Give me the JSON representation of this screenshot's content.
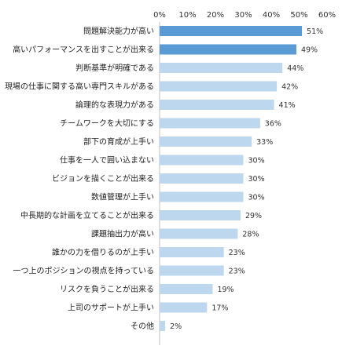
{
  "chart_data": {
    "type": "bar",
    "orientation": "horizontal",
    "title": "",
    "xlabel": "",
    "ylabel": "",
    "xlim": [
      0,
      60
    ],
    "x_ticks": [
      "0%",
      "10%",
      "20%",
      "30%",
      "40%",
      "50%",
      "60%"
    ],
    "grid": false,
    "legend": "none",
    "categories": [
      "問題解決能力が高い",
      "高いパフォーマンスを出すことが出来る",
      "判断基準が明確である",
      "現場の仕事に関する高い専門スキルがある",
      "論理的な表現力がある",
      "チームワークを大切にする",
      "部下の育成が上手い",
      "仕事を一人で囲い込まない",
      "ビジョンを描くことが出来る",
      "数値管理が上手い",
      "中長期的な計画を立てることが出来る",
      "課題抽出力が高い",
      "誰かの力を借りるのが上手い",
      "一つ上のポジションの視点を持っている",
      "リスクを負うことが出来る",
      "上司のサポートが上手い",
      "その他"
    ],
    "values": [
      51,
      49,
      44,
      42,
      41,
      36,
      33,
      30,
      30,
      30,
      29,
      28,
      23,
      23,
      19,
      17,
      2
    ],
    "value_labels": [
      "51%",
      "49%",
      "44%",
      "42%",
      "41%",
      "36%",
      "33%",
      "30%",
      "30%",
      "30%",
      "29%",
      "28%",
      "23%",
      "23%",
      "19%",
      "17%",
      "2%"
    ],
    "highlighted_count": 2,
    "colors": {
      "highlight": "#5b9bd5",
      "normal": "#bdd7ee",
      "axis": "#bfbfbf",
      "text": "#222222"
    }
  }
}
